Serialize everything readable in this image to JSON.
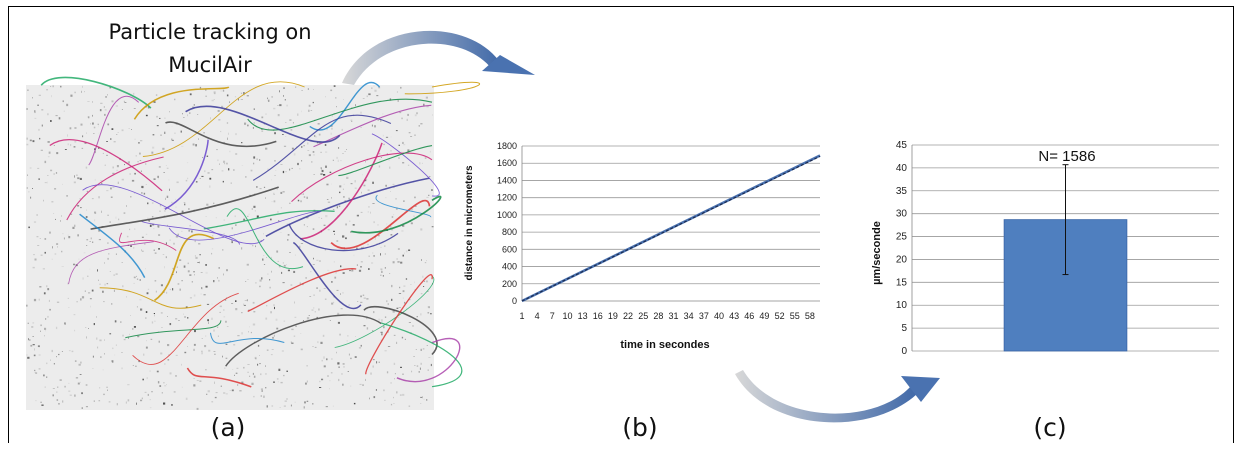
{
  "panel_a": {
    "title_line1": "Particle tracking on",
    "title_line2": "MucilAir",
    "track_colors": [
      "#3a3a9a",
      "#cc2277",
      "#22aa66",
      "#cc9900",
      "#6644cc",
      "#dd3333",
      "#2288cc",
      "#444444",
      "#118844",
      "#aa44aa"
    ]
  },
  "captions": {
    "a": "(a)",
    "b": "(b)",
    "c": "(c)"
  },
  "arrow_color": "#4a72b0",
  "chart_data": [
    {
      "type": "line",
      "xlabel": "time in secondes",
      "ylabel": "distance in micrometers",
      "ylim": [
        0,
        1800
      ],
      "yticks": [
        0,
        200,
        400,
        600,
        800,
        1000,
        1200,
        1400,
        1600,
        1800
      ],
      "xticks": [
        1,
        4,
        7,
        10,
        13,
        16,
        19,
        22,
        25,
        28,
        31,
        34,
        37,
        40,
        43,
        46,
        49,
        52,
        55,
        58
      ],
      "x_range": [
        1,
        60
      ],
      "grid": "horizontal",
      "series": [
        {
          "x": [
            1,
            60
          ],
          "values": [
            0,
            1690
          ],
          "color": "#4a72b0"
        },
        {
          "x": [
            1,
            60
          ],
          "values": [
            0,
            1680
          ],
          "color": "#1a2a50"
        }
      ]
    },
    {
      "type": "bar",
      "ylabel": "µm/seconde",
      "ylim": [
        0,
        45
      ],
      "yticks": [
        0,
        5,
        10,
        15,
        20,
        25,
        30,
        35,
        40,
        45
      ],
      "categories": [
        ""
      ],
      "values": [
        28.7
      ],
      "error": [
        12
      ],
      "annotation": "N= 1586",
      "bar_color": "#4f7fbf",
      "grid": "horizontal"
    }
  ]
}
